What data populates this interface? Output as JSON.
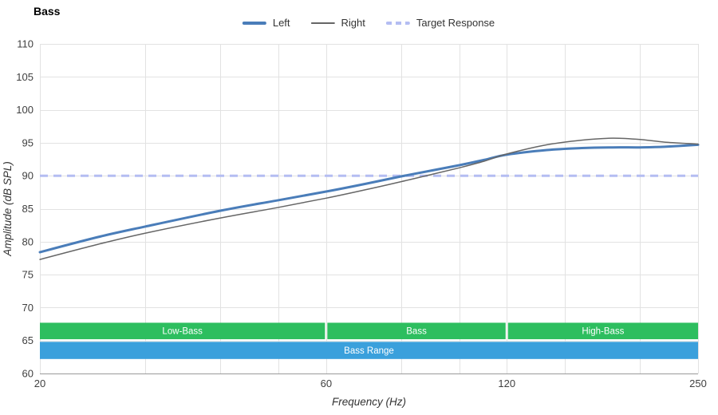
{
  "title": "Bass",
  "legend": {
    "items": [
      {
        "label": "Left",
        "color": "#4a7db9",
        "dash": false,
        "thickness": 4
      },
      {
        "label": "Right",
        "color": "#666666",
        "dash": false,
        "thickness": 2
      },
      {
        "label": "Target Response",
        "color": "#b4bdf2",
        "dash": true,
        "thickness": 4
      }
    ]
  },
  "chart_data": {
    "type": "line",
    "title": "Bass",
    "xlabel": "Frequency (Hz)",
    "ylabel": "Amplitude (dB SPL)",
    "x_scale": "log",
    "xlim": [
      20,
      250
    ],
    "ylim": [
      60,
      110
    ],
    "x_tick_labels": [
      20,
      60,
      120,
      250
    ],
    "x_gridlines": [
      20,
      30,
      40,
      50,
      60,
      80,
      100,
      120,
      150,
      200,
      250
    ],
    "y_ticks": [
      60,
      65,
      70,
      75,
      80,
      85,
      90,
      95,
      100,
      105,
      110
    ],
    "grid": true,
    "legend_position": "top",
    "colors": {
      "gridline": "#e2e2e2",
      "axis": "#9a9a9a",
      "tick_text": "#404040"
    },
    "target": {
      "name": "Target Response",
      "value": 90,
      "color": "#b4bdf2"
    },
    "series": [
      {
        "name": "Left",
        "color": "#4a7db9",
        "width": 3,
        "x": [
          20,
          25,
          30,
          40,
          50,
          60,
          70,
          80,
          90,
          100,
          110,
          120,
          140,
          160,
          180,
          200,
          220,
          250
        ],
        "y": [
          78.4,
          80.7,
          82.3,
          84.7,
          86.3,
          87.6,
          88.8,
          89.9,
          90.8,
          91.6,
          92.4,
          93.2,
          93.9,
          94.2,
          94.3,
          94.3,
          94.4,
          94.7
        ]
      },
      {
        "name": "Right",
        "color": "#666666",
        "width": 1.5,
        "x": [
          20,
          25,
          30,
          40,
          50,
          60,
          70,
          80,
          90,
          100,
          110,
          120,
          140,
          160,
          180,
          200,
          220,
          250
        ],
        "y": [
          77.3,
          79.6,
          81.3,
          83.6,
          85.2,
          86.6,
          87.9,
          89.1,
          90.2,
          91.2,
          92.2,
          93.3,
          94.7,
          95.4,
          95.7,
          95.5,
          95.1,
          94.8
        ]
      }
    ],
    "bands": [
      {
        "label": "Low-Bass",
        "x0": 20,
        "x1": 60,
        "y0": 65.2,
        "y1": 67.7,
        "color": "#2dbe5f"
      },
      {
        "label": "Bass",
        "x0": 60,
        "x1": 120,
        "y0": 65.2,
        "y1": 67.7,
        "color": "#2dbe5f"
      },
      {
        "label": "High-Bass",
        "x0": 120,
        "x1": 250,
        "y0": 65.2,
        "y1": 67.7,
        "color": "#2dbe5f"
      },
      {
        "label": "Bass Range",
        "x0": 20,
        "x1": 250,
        "y0": 62.2,
        "y1": 64.8,
        "color": "#3aa0dc"
      }
    ]
  }
}
